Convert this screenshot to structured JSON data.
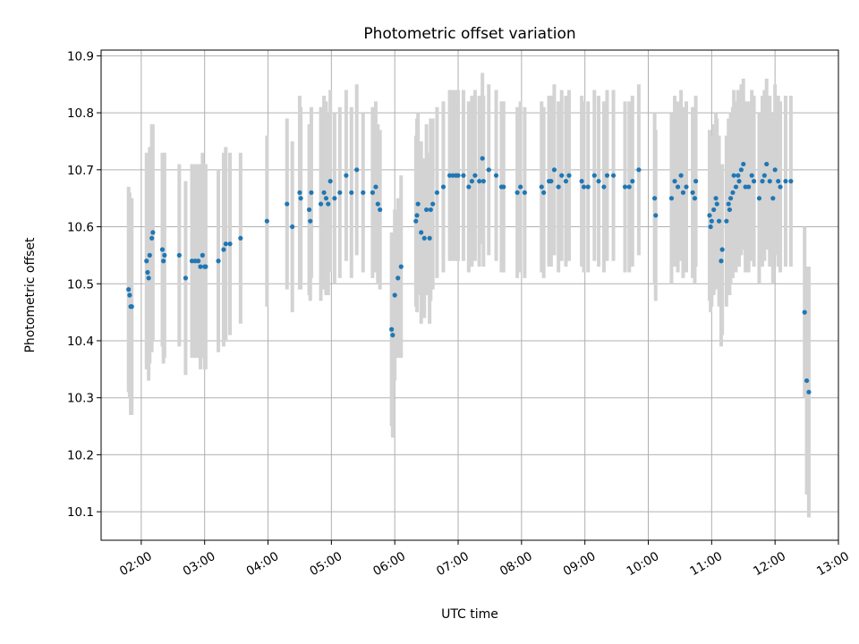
{
  "chart_data": {
    "type": "scatter",
    "title": "Photometric offset variation",
    "xlabel": "UTC time",
    "ylabel": "Photometric offset",
    "xlim": [
      "01:22",
      "13:00"
    ],
    "ylim": [
      10.05,
      10.91
    ],
    "xticks": [
      "02:00",
      "03:00",
      "04:00",
      "05:00",
      "06:00",
      "07:00",
      "08:00",
      "09:00",
      "10:00",
      "11:00",
      "12:00",
      "13:00"
    ],
    "yticks": [
      "10.1",
      "10.2",
      "10.3",
      "10.4",
      "10.5",
      "10.6",
      "10.7",
      "10.8",
      "10.9"
    ],
    "grid": true,
    "legend": "none",
    "point_color": "#1f77b4",
    "errorbar_color": "#d3d3d3",
    "points": [
      {
        "x": "01:48",
        "y": 10.49,
        "err": 0.18
      },
      {
        "x": "01:49",
        "y": 10.48,
        "err": 0.18
      },
      {
        "x": "01:50",
        "y": 10.46,
        "err": 0.19
      },
      {
        "x": "01:51",
        "y": 10.46,
        "err": 0.19
      },
      {
        "x": "02:05",
        "y": 10.54,
        "err": 0.19
      },
      {
        "x": "02:06",
        "y": 10.52,
        "err": 0.17
      },
      {
        "x": "02:07",
        "y": 10.51,
        "err": 0.18
      },
      {
        "x": "02:08",
        "y": 10.55,
        "err": 0.19
      },
      {
        "x": "02:10",
        "y": 10.58,
        "err": 0.2
      },
      {
        "x": "02:11",
        "y": 10.59,
        "err": 0.19
      },
      {
        "x": "02:20",
        "y": 10.56,
        "err": 0.17
      },
      {
        "x": "02:21",
        "y": 10.54,
        "err": 0.18
      },
      {
        "x": "02:22",
        "y": 10.55,
        "err": 0.18
      },
      {
        "x": "02:36",
        "y": 10.55,
        "err": 0.16
      },
      {
        "x": "02:42",
        "y": 10.51,
        "err": 0.17
      },
      {
        "x": "02:48",
        "y": 10.54,
        "err": 0.17
      },
      {
        "x": "02:51",
        "y": 10.54,
        "err": 0.17
      },
      {
        "x": "02:54",
        "y": 10.54,
        "err": 0.17
      },
      {
        "x": "02:56",
        "y": 10.53,
        "err": 0.18
      },
      {
        "x": "02:58",
        "y": 10.55,
        "err": 0.18
      },
      {
        "x": "03:00",
        "y": 10.53,
        "err": 0.18
      },
      {
        "x": "03:01",
        "y": 10.53,
        "err": 0.18
      },
      {
        "x": "03:13",
        "y": 10.54,
        "err": 0.16
      },
      {
        "x": "03:18",
        "y": 10.56,
        "err": 0.17
      },
      {
        "x": "03:20",
        "y": 10.57,
        "err": 0.17
      },
      {
        "x": "03:24",
        "y": 10.57,
        "err": 0.16
      },
      {
        "x": "03:34",
        "y": 10.58,
        "err": 0.15
      },
      {
        "x": "03:59",
        "y": 10.61,
        "err": 0.15
      },
      {
        "x": "04:18",
        "y": 10.64,
        "err": 0.15
      },
      {
        "x": "04:23",
        "y": 10.6,
        "err": 0.15
      },
      {
        "x": "04:30",
        "y": 10.66,
        "err": 0.17
      },
      {
        "x": "04:31",
        "y": 10.65,
        "err": 0.16
      },
      {
        "x": "04:39",
        "y": 10.63,
        "err": 0.15
      },
      {
        "x": "04:40",
        "y": 10.61,
        "err": 0.14
      },
      {
        "x": "04:41",
        "y": 10.66,
        "err": 0.15
      },
      {
        "x": "04:50",
        "y": 10.64,
        "err": 0.17
      },
      {
        "x": "04:53",
        "y": 10.66,
        "err": 0.17
      },
      {
        "x": "04:55",
        "y": 10.65,
        "err": 0.17
      },
      {
        "x": "04:57",
        "y": 10.64,
        "err": 0.16
      },
      {
        "x": "04:59",
        "y": 10.68,
        "err": 0.16
      },
      {
        "x": "05:03",
        "y": 10.65,
        "err": 0.15
      },
      {
        "x": "05:08",
        "y": 10.66,
        "err": 0.15
      },
      {
        "x": "05:14",
        "y": 10.69,
        "err": 0.15
      },
      {
        "x": "05:19",
        "y": 10.66,
        "err": 0.15
      },
      {
        "x": "05:24",
        "y": 10.7,
        "err": 0.15
      },
      {
        "x": "05:30",
        "y": 10.66,
        "err": 0.14
      },
      {
        "x": "05:39",
        "y": 10.66,
        "err": 0.15
      },
      {
        "x": "05:42",
        "y": 10.67,
        "err": 0.15
      },
      {
        "x": "05:44",
        "y": 10.64,
        "err": 0.14
      },
      {
        "x": "05:46",
        "y": 10.63,
        "err": 0.14
      },
      {
        "x": "05:57",
        "y": 10.42,
        "err": 0.17
      },
      {
        "x": "05:58",
        "y": 10.41,
        "err": 0.18
      },
      {
        "x": "06:00",
        "y": 10.48,
        "err": 0.15
      },
      {
        "x": "06:03",
        "y": 10.51,
        "err": 0.14
      },
      {
        "x": "06:06",
        "y": 10.53,
        "err": 0.16
      },
      {
        "x": "06:20",
        "y": 10.61,
        "err": 0.15
      },
      {
        "x": "06:21",
        "y": 10.62,
        "err": 0.17
      },
      {
        "x": "06:22",
        "y": 10.64,
        "err": 0.16
      },
      {
        "x": "06:25",
        "y": 10.59,
        "err": 0.16
      },
      {
        "x": "06:28",
        "y": 10.58,
        "err": 0.14
      },
      {
        "x": "06:30",
        "y": 10.63,
        "err": 0.15
      },
      {
        "x": "06:33",
        "y": 10.58,
        "err": 0.15
      },
      {
        "x": "06:34",
        "y": 10.63,
        "err": 0.16
      },
      {
        "x": "06:36",
        "y": 10.64,
        "err": 0.15
      },
      {
        "x": "06:40",
        "y": 10.66,
        "err": 0.15
      },
      {
        "x": "06:46",
        "y": 10.67,
        "err": 0.15
      },
      {
        "x": "06:52",
        "y": 10.69,
        "err": 0.15
      },
      {
        "x": "06:55",
        "y": 10.69,
        "err": 0.15
      },
      {
        "x": "06:58",
        "y": 10.69,
        "err": 0.15
      },
      {
        "x": "07:00",
        "y": 10.69,
        "err": 0.15
      },
      {
        "x": "07:05",
        "y": 10.69,
        "err": 0.15
      },
      {
        "x": "07:10",
        "y": 10.67,
        "err": 0.15
      },
      {
        "x": "07:13",
        "y": 10.68,
        "err": 0.15
      },
      {
        "x": "07:16",
        "y": 10.69,
        "err": 0.15
      },
      {
        "x": "07:20",
        "y": 10.68,
        "err": 0.15
      },
      {
        "x": "07:23",
        "y": 10.72,
        "err": 0.15
      },
      {
        "x": "07:24",
        "y": 10.68,
        "err": 0.15
      },
      {
        "x": "07:29",
        "y": 10.7,
        "err": 0.15
      },
      {
        "x": "07:36",
        "y": 10.69,
        "err": 0.15
      },
      {
        "x": "07:41",
        "y": 10.67,
        "err": 0.15
      },
      {
        "x": "07:43",
        "y": 10.67,
        "err": 0.15
      },
      {
        "x": "07:56",
        "y": 10.66,
        "err": 0.15
      },
      {
        "x": "07:59",
        "y": 10.67,
        "err": 0.15
      },
      {
        "x": "08:03",
        "y": 10.66,
        "err": 0.15
      },
      {
        "x": "08:19",
        "y": 10.67,
        "err": 0.15
      },
      {
        "x": "08:21",
        "y": 10.66,
        "err": 0.15
      },
      {
        "x": "08:26",
        "y": 10.68,
        "err": 0.15
      },
      {
        "x": "08:28",
        "y": 10.68,
        "err": 0.15
      },
      {
        "x": "08:31",
        "y": 10.7,
        "err": 0.15
      },
      {
        "x": "08:35",
        "y": 10.67,
        "err": 0.15
      },
      {
        "x": "08:38",
        "y": 10.69,
        "err": 0.15
      },
      {
        "x": "08:42",
        "y": 10.68,
        "err": 0.15
      },
      {
        "x": "08:45",
        "y": 10.69,
        "err": 0.15
      },
      {
        "x": "08:57",
        "y": 10.68,
        "err": 0.15
      },
      {
        "x": "08:59",
        "y": 10.67,
        "err": 0.15
      },
      {
        "x": "09:03",
        "y": 10.67,
        "err": 0.15
      },
      {
        "x": "09:09",
        "y": 10.69,
        "err": 0.15
      },
      {
        "x": "09:13",
        "y": 10.68,
        "err": 0.15
      },
      {
        "x": "09:18",
        "y": 10.67,
        "err": 0.15
      },
      {
        "x": "09:21",
        "y": 10.69,
        "err": 0.15
      },
      {
        "x": "09:27",
        "y": 10.69,
        "err": 0.15
      },
      {
        "x": "09:38",
        "y": 10.67,
        "err": 0.15
      },
      {
        "x": "09:42",
        "y": 10.67,
        "err": 0.15
      },
      {
        "x": "09:45",
        "y": 10.68,
        "err": 0.15
      },
      {
        "x": "09:51",
        "y": 10.7,
        "err": 0.15
      },
      {
        "x": "10:06",
        "y": 10.65,
        "err": 0.15
      },
      {
        "x": "10:07",
        "y": 10.62,
        "err": 0.15
      },
      {
        "x": "10:22",
        "y": 10.65,
        "err": 0.15
      },
      {
        "x": "10:25",
        "y": 10.68,
        "err": 0.15
      },
      {
        "x": "10:28",
        "y": 10.67,
        "err": 0.15
      },
      {
        "x": "10:31",
        "y": 10.69,
        "err": 0.15
      },
      {
        "x": "10:33",
        "y": 10.66,
        "err": 0.15
      },
      {
        "x": "10:36",
        "y": 10.67,
        "err": 0.15
      },
      {
        "x": "10:42",
        "y": 10.66,
        "err": 0.15
      },
      {
        "x": "10:44",
        "y": 10.65,
        "err": 0.15
      },
      {
        "x": "10:45",
        "y": 10.68,
        "err": 0.15
      },
      {
        "x": "10:58",
        "y": 10.62,
        "err": 0.15
      },
      {
        "x": "10:59",
        "y": 10.6,
        "err": 0.15
      },
      {
        "x": "11:00",
        "y": 10.61,
        "err": 0.15
      },
      {
        "x": "11:02",
        "y": 10.63,
        "err": 0.15
      },
      {
        "x": "11:04",
        "y": 10.65,
        "err": 0.15
      },
      {
        "x": "11:05",
        "y": 10.64,
        "err": 0.15
      },
      {
        "x": "11:07",
        "y": 10.61,
        "err": 0.15
      },
      {
        "x": "11:09",
        "y": 10.54,
        "err": 0.15
      },
      {
        "x": "11:10",
        "y": 10.56,
        "err": 0.15
      },
      {
        "x": "11:14",
        "y": 10.61,
        "err": 0.15
      },
      {
        "x": "11:16",
        "y": 10.64,
        "err": 0.15
      },
      {
        "x": "11:17",
        "y": 10.63,
        "err": 0.15
      },
      {
        "x": "11:18",
        "y": 10.65,
        "err": 0.15
      },
      {
        "x": "11:20",
        "y": 10.66,
        "err": 0.15
      },
      {
        "x": "11:21",
        "y": 10.69,
        "err": 0.15
      },
      {
        "x": "11:23",
        "y": 10.67,
        "err": 0.15
      },
      {
        "x": "11:25",
        "y": 10.69,
        "err": 0.15
      },
      {
        "x": "11:26",
        "y": 10.68,
        "err": 0.15
      },
      {
        "x": "11:28",
        "y": 10.7,
        "err": 0.15
      },
      {
        "x": "11:30",
        "y": 10.71,
        "err": 0.15
      },
      {
        "x": "11:32",
        "y": 10.67,
        "err": 0.15
      },
      {
        "x": "11:35",
        "y": 10.67,
        "err": 0.15
      },
      {
        "x": "11:38",
        "y": 10.69,
        "err": 0.15
      },
      {
        "x": "11:40",
        "y": 10.68,
        "err": 0.15
      },
      {
        "x": "11:45",
        "y": 10.65,
        "err": 0.15
      },
      {
        "x": "11:48",
        "y": 10.68,
        "err": 0.15
      },
      {
        "x": "11:50",
        "y": 10.69,
        "err": 0.15
      },
      {
        "x": "11:52",
        "y": 10.71,
        "err": 0.15
      },
      {
        "x": "11:55",
        "y": 10.68,
        "err": 0.15
      },
      {
        "x": "11:58",
        "y": 10.65,
        "err": 0.15
      },
      {
        "x": "12:00",
        "y": 10.7,
        "err": 0.15
      },
      {
        "x": "12:03",
        "y": 10.68,
        "err": 0.15
      },
      {
        "x": "12:05",
        "y": 10.67,
        "err": 0.15
      },
      {
        "x": "12:10",
        "y": 10.68,
        "err": 0.15
      },
      {
        "x": "12:15",
        "y": 10.68,
        "err": 0.15
      },
      {
        "x": "12:28",
        "y": 10.45,
        "err": 0.15
      },
      {
        "x": "12:30",
        "y": 10.33,
        "err": 0.2
      },
      {
        "x": "12:32",
        "y": 10.31,
        "err": 0.22
      }
    ]
  }
}
